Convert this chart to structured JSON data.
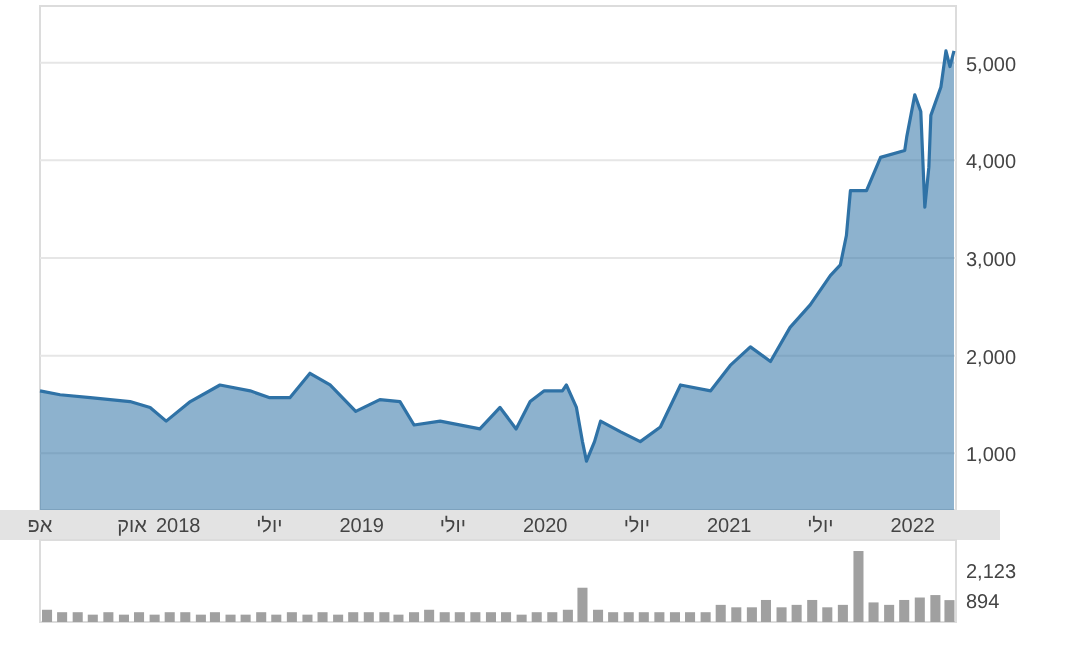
{
  "chart_data": [
    {
      "type": "area",
      "x": [
        "2017-04-01",
        "2017-05-11",
        "2017-07-10",
        "2017-09-27",
        "2017-11-06",
        "2017-12-08",
        "2018-01-25",
        "2018-03-25",
        "2018-05-24",
        "2018-07-02",
        "2018-08-11",
        "2018-09-20",
        "2018-10-30",
        "2018-12-20",
        "2019-02-06",
        "2019-03-18",
        "2019-04-15",
        "2019-06-06",
        "2019-08-24",
        "2019-10-03",
        "2019-11-04",
        "2019-12-02",
        "2019-12-30",
        "2020-02-04",
        "2020-02-12",
        "2020-03-03",
        "2020-03-15",
        "2020-03-23",
        "2020-04-08",
        "2020-04-20",
        "2020-05-30",
        "2020-07-08",
        "2020-08-17",
        "2020-09-26",
        "2020-11-25",
        "2021-01-03",
        "2021-02-12",
        "2021-03-24",
        "2021-05-02",
        "2021-06-11",
        "2021-07-21",
        "2021-08-10",
        "2021-08-22",
        "2021-08-30",
        "2021-10-01",
        "2021-10-29",
        "2021-12-16",
        "2021-12-20",
        "2022-01-05",
        "2022-01-17",
        "2022-01-25",
        "2022-02-02",
        "2022-02-06",
        "2022-02-26",
        "2022-03-08",
        "2022-03-16",
        "2022-03-24"
      ],
      "series": [
        {
          "color": "#2f72a6",
          "values": [
            1640,
            1600,
            1570,
            1530,
            1470,
            1330,
            1530,
            1700,
            1640,
            1570,
            1570,
            1820,
            1700,
            1430,
            1550,
            1530,
            1290,
            1330,
            1250,
            1470,
            1250,
            1530,
            1640,
            1640,
            1700,
            1470,
            1120,
            920,
            1120,
            1330,
            1220,
            1120,
            1270,
            1700,
            1640,
            1900,
            2090,
            1940,
            2290,
            2520,
            2820,
            2930,
            3230,
            3690,
            3690,
            4030,
            4100,
            4240,
            4670,
            4500,
            3520,
            3930,
            4460,
            4750,
            5120,
            4960,
            5120
          ]
        }
      ],
      "xlim": [
        "2017-04-01",
        "2022-03-28"
      ],
      "xticks": [
        {
          "value": "2017-04-01",
          "label": "אפ"
        },
        {
          "value": "2017-10-01",
          "label": "אוק"
        },
        {
          "value": "2018-01-01",
          "label": "2018"
        },
        {
          "value": "2018-07-01",
          "label": "יולי"
        },
        {
          "value": "2019-01-01",
          "label": "2019"
        },
        {
          "value": "2019-07-01",
          "label": "יולי"
        },
        {
          "value": "2020-01-01",
          "label": "2020"
        },
        {
          "value": "2020-07-01",
          "label": "יולי"
        },
        {
          "value": "2021-01-01",
          "label": "2021"
        },
        {
          "value": "2021-07-01",
          "label": "יולי"
        },
        {
          "value": "2022-01-01",
          "label": "2022"
        }
      ],
      "ylim": [
        420,
        5580
      ],
      "yticks": [
        {
          "value": 1000,
          "label": "1,000"
        },
        {
          "value": 2000,
          "label": "2,000"
        },
        {
          "value": 3000,
          "label": "3,000"
        },
        {
          "value": 4000,
          "label": "4,000"
        },
        {
          "value": 5000,
          "label": "5,000"
        }
      ],
      "grid": "y"
    },
    {
      "type": "bar",
      "x": [
        "2017-04-15",
        "2017-05-15",
        "2017-06-15",
        "2017-07-15",
        "2017-08-15",
        "2017-09-15",
        "2017-10-15",
        "2017-11-15",
        "2017-12-15",
        "2018-01-15",
        "2018-02-15",
        "2018-03-15",
        "2018-04-15",
        "2018-05-15",
        "2018-06-15",
        "2018-07-15",
        "2018-08-15",
        "2018-09-15",
        "2018-10-15",
        "2018-11-15",
        "2018-12-15",
        "2019-01-15",
        "2019-02-15",
        "2019-03-15",
        "2019-04-15",
        "2019-05-15",
        "2019-06-15",
        "2019-07-15",
        "2019-08-15",
        "2019-09-15",
        "2019-10-15",
        "2019-11-15",
        "2019-12-15",
        "2020-01-15",
        "2020-02-15",
        "2020-03-15",
        "2020-04-15",
        "2020-05-15",
        "2020-06-15",
        "2020-07-15",
        "2020-08-15",
        "2020-09-15",
        "2020-10-15",
        "2020-11-15",
        "2020-12-15",
        "2021-01-15",
        "2021-02-15",
        "2021-03-15",
        "2021-04-15",
        "2021-05-15",
        "2021-06-15",
        "2021-07-15",
        "2021-08-15",
        "2021-09-15",
        "2021-10-15",
        "2021-11-15",
        "2021-12-15",
        "2022-01-15",
        "2022-02-15",
        "2022-03-15"
      ],
      "series": [
        {
          "color": "#a0a0a0",
          "values": [
            500,
            400,
            400,
            300,
            400,
            300,
            400,
            300,
            400,
            400,
            300,
            400,
            300,
            300,
            400,
            300,
            400,
            300,
            400,
            300,
            400,
            400,
            400,
            300,
            400,
            500,
            400,
            400,
            400,
            400,
            400,
            300,
            400,
            400,
            500,
            1400,
            500,
            400,
            400,
            400,
            400,
            400,
            400,
            400,
            700,
            600,
            600,
            900,
            600,
            700,
            900,
            600,
            700,
            2900,
            800,
            700,
            900,
            1000,
            1100,
            894
          ]
        }
      ],
      "xlim": [
        "2017-04-01",
        "2022-03-28"
      ],
      "ylim": [
        0,
        3350
      ],
      "yticks": [
        {
          "value": 894,
          "label": "894"
        },
        {
          "value": 2123,
          "label": "2,123"
        }
      ],
      "tick_labels": "y",
      "grid": false
    }
  ]
}
